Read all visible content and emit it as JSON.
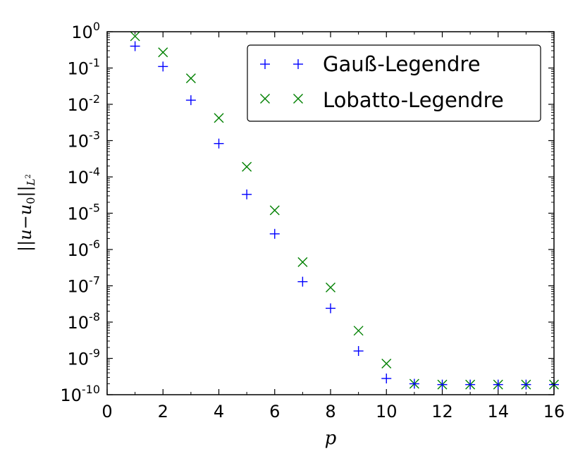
{
  "chart_data": {
    "type": "scatter",
    "xlabel": "p",
    "ylabel": "||u−u0||L²",
    "ylabel_parts": {
      "open": "||",
      "u": "u",
      "minus": "−",
      "u0": "u",
      "sub0": "0",
      "close": "||",
      "sub": "L",
      "sup": "2"
    },
    "xlim": [
      0,
      16
    ],
    "ylim": [
      1e-10,
      1
    ],
    "yscale": "log",
    "grid": false,
    "legend_position": "top-right",
    "x_ticks": [
      "0",
      "2",
      "4",
      "6",
      "8",
      "10",
      "12",
      "14",
      "16"
    ],
    "y_ticks": [
      {
        "base": "10",
        "exp": "0"
      },
      {
        "base": "10",
        "exp": "-1"
      },
      {
        "base": "10",
        "exp": "-2"
      },
      {
        "base": "10",
        "exp": "-3"
      },
      {
        "base": "10",
        "exp": "-4"
      },
      {
        "base": "10",
        "exp": "-5"
      },
      {
        "base": "10",
        "exp": "-6"
      },
      {
        "base": "10",
        "exp": "-7"
      },
      {
        "base": "10",
        "exp": "-8"
      },
      {
        "base": "10",
        "exp": "-9"
      },
      {
        "base": "10",
        "exp": "-10"
      }
    ],
    "series": [
      {
        "name": "Gauß-Legendre",
        "marker": "+",
        "color": "#0000ff",
        "x": [
          1,
          2,
          3,
          4,
          5,
          6,
          7,
          8,
          9,
          10,
          11,
          12,
          13,
          14,
          15,
          16
        ],
        "y": [
          0.4,
          0.11,
          0.013,
          0.00083,
          3.3e-05,
          2.7e-06,
          1.3e-07,
          2.4e-08,
          1.6e-09,
          2.8e-10,
          2e-10,
          1.9e-10,
          1.9e-10,
          1.9e-10,
          1.9e-10,
          1.9e-10
        ]
      },
      {
        "name": "Lobatto-Legendre",
        "marker": "x",
        "color": "#008000",
        "x": [
          1,
          2,
          3,
          4,
          5,
          6,
          7,
          8,
          9,
          10,
          11,
          12,
          13,
          14,
          15,
          16
        ],
        "y": [
          0.75,
          0.27,
          0.052,
          0.0042,
          0.00019,
          1.2e-05,
          4.5e-07,
          9e-08,
          5.8e-09,
          7.2e-10,
          2e-10,
          1.9e-10,
          1.9e-10,
          1.9e-10,
          1.9e-10,
          1.9e-10
        ]
      }
    ]
  }
}
